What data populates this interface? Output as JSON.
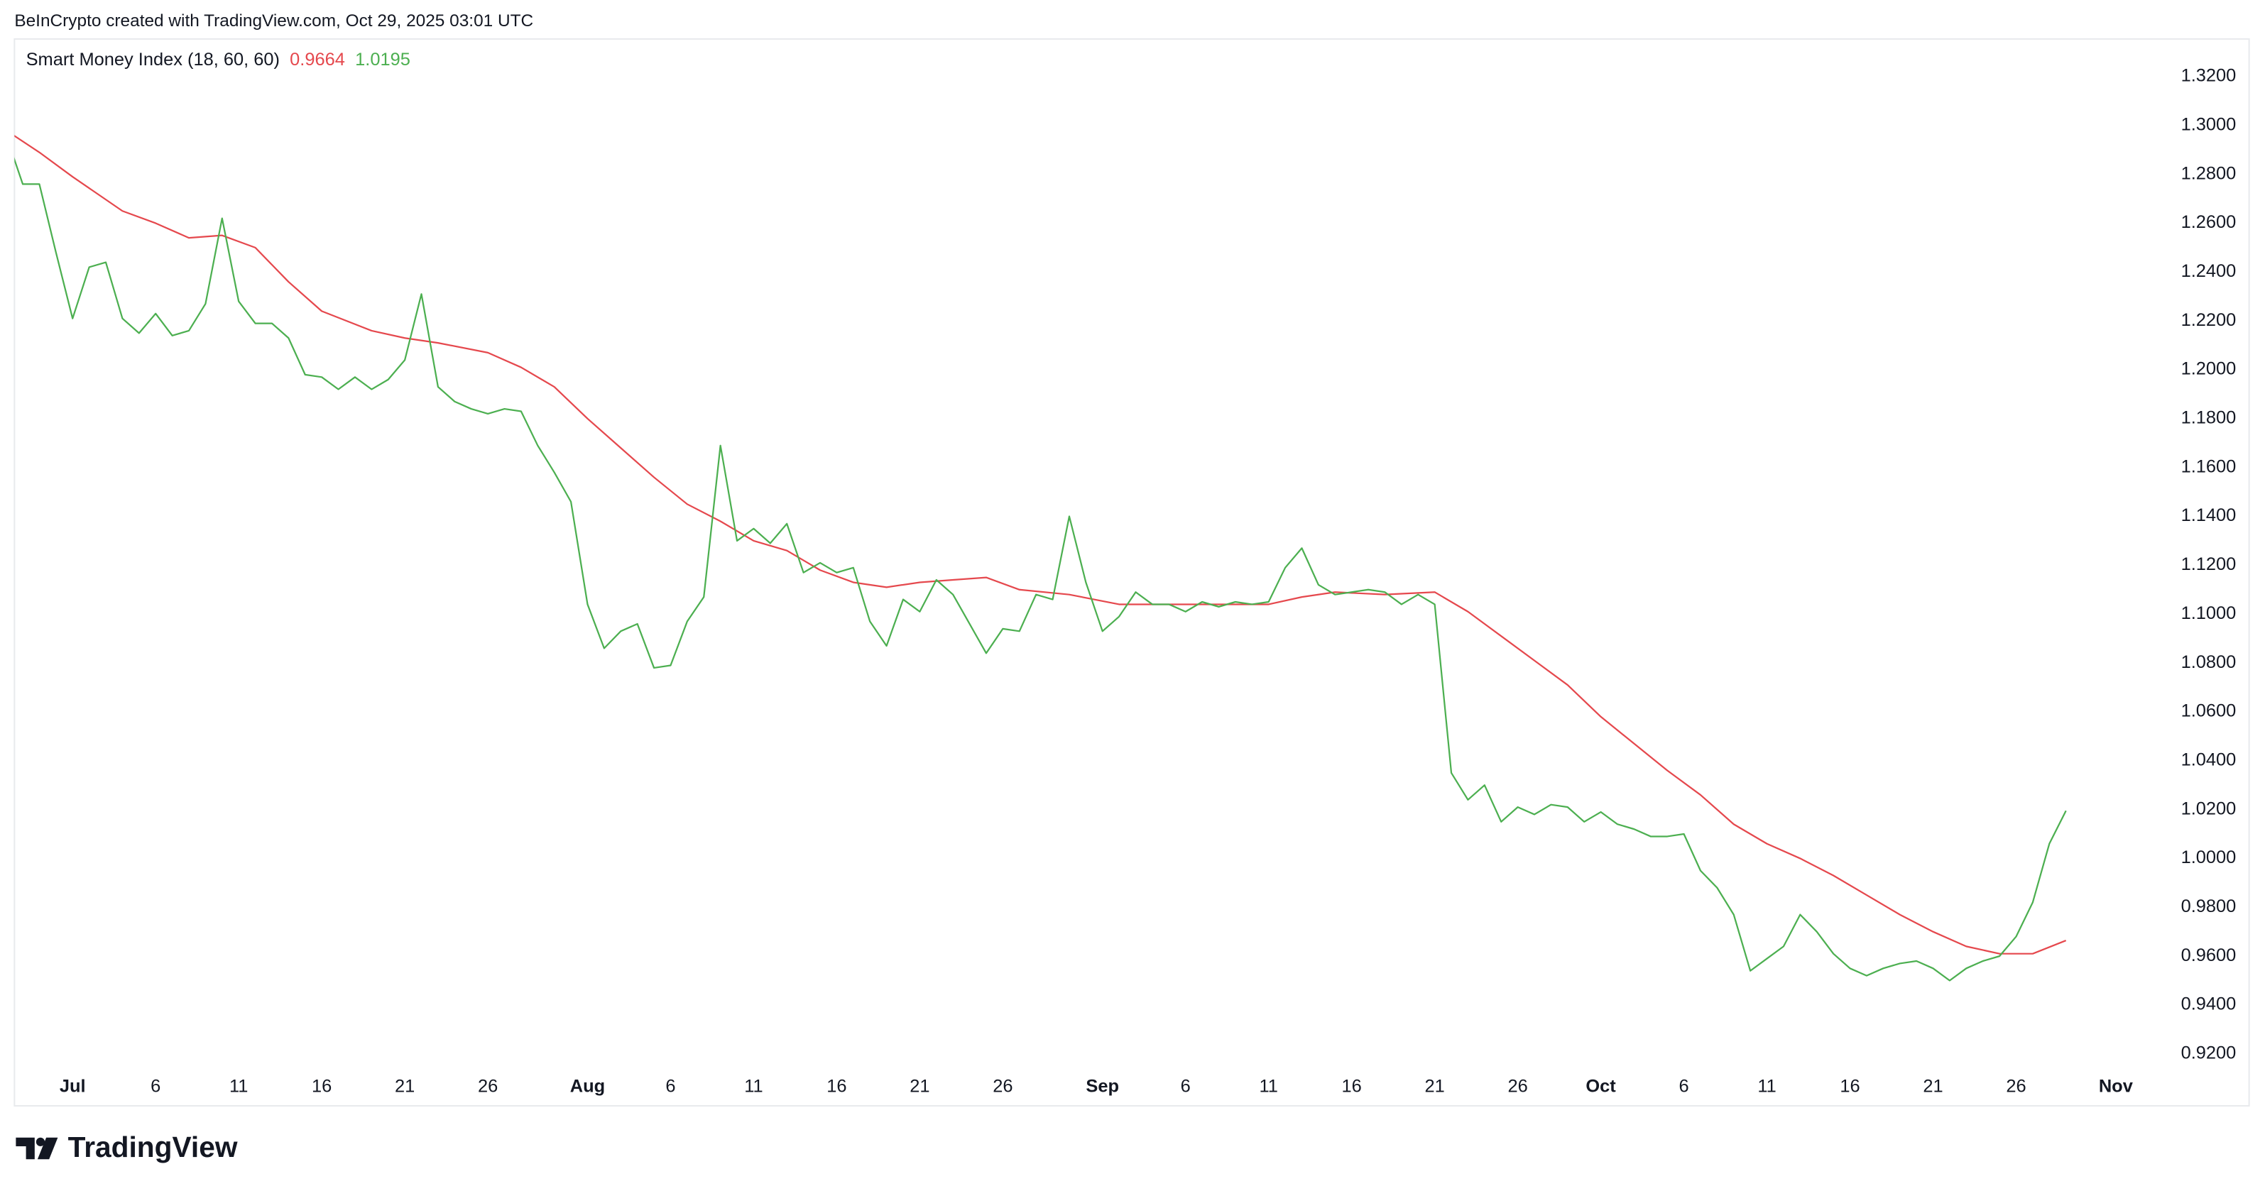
{
  "chart_data": {
    "type": "line",
    "attribution": "BeInCrypto created with TradingView.com, Oct 29, 2025 03:01 UTC",
    "title": "Smart Money Index (18, 60, 60)",
    "logo_text": "TradingView",
    "xlim": [
      -3.5,
      125.2
    ],
    "xticks": [
      {
        "value": 0,
        "label": "Jul"
      },
      {
        "value": 5,
        "label": "6"
      },
      {
        "value": 10,
        "label": "11"
      },
      {
        "value": 15,
        "label": "16"
      },
      {
        "value": 20,
        "label": "21"
      },
      {
        "value": 25,
        "label": "26"
      },
      {
        "value": 31,
        "label": "Aug"
      },
      {
        "value": 36,
        "label": "6"
      },
      {
        "value": 41,
        "label": "11"
      },
      {
        "value": 46,
        "label": "16"
      },
      {
        "value": 51,
        "label": "21"
      },
      {
        "value": 56,
        "label": "26"
      },
      {
        "value": 62,
        "label": "Sep"
      },
      {
        "value": 67,
        "label": "6"
      },
      {
        "value": 72,
        "label": "11"
      },
      {
        "value": 77,
        "label": "16"
      },
      {
        "value": 82,
        "label": "21"
      },
      {
        "value": 87,
        "label": "26"
      },
      {
        "value": 92,
        "label": "Oct"
      },
      {
        "value": 97,
        "label": "6"
      },
      {
        "value": 102,
        "label": "11"
      },
      {
        "value": 107,
        "label": "16"
      },
      {
        "value": 112,
        "label": "21"
      },
      {
        "value": 117,
        "label": "26"
      },
      {
        "value": 123,
        "label": "Nov"
      }
    ],
    "ylim": [
      0.9141,
      1.3354
    ],
    "yticks": [
      {
        "value": 0.92,
        "label": "0.9200"
      },
      {
        "value": 0.94,
        "label": "0.9400"
      },
      {
        "value": 0.96,
        "label": "0.9600"
      },
      {
        "value": 0.98,
        "label": "0.9800"
      },
      {
        "value": 1.0,
        "label": "1.0000"
      },
      {
        "value": 1.02,
        "label": "1.0200"
      },
      {
        "value": 1.04,
        "label": "1.0400"
      },
      {
        "value": 1.06,
        "label": "1.0600"
      },
      {
        "value": 1.08,
        "label": "1.0800"
      },
      {
        "value": 1.1,
        "label": "1.1000"
      },
      {
        "value": 1.12,
        "label": "1.1200"
      },
      {
        "value": 1.14,
        "label": "1.1400"
      },
      {
        "value": 1.16,
        "label": "1.1600"
      },
      {
        "value": 1.18,
        "label": "1.1800"
      },
      {
        "value": 1.2,
        "label": "1.2000"
      },
      {
        "value": 1.22,
        "label": "1.2200"
      },
      {
        "value": 1.24,
        "label": "1.2400"
      },
      {
        "value": 1.26,
        "label": "1.2600"
      },
      {
        "value": 1.28,
        "label": "1.2800"
      },
      {
        "value": 1.3,
        "label": "1.3000"
      },
      {
        "value": 1.32,
        "label": "1.3200"
      }
    ],
    "grid": false,
    "series": [
      {
        "color": "#e5484d",
        "x": [
          -4,
          -2,
          0,
          3,
          5,
          7,
          9,
          11,
          13,
          15,
          18,
          20,
          22,
          25,
          27,
          29,
          31,
          33,
          35,
          37,
          39,
          41,
          43,
          45,
          47,
          49,
          51,
          53,
          55,
          57,
          60,
          63,
          66,
          69,
          72,
          74,
          76,
          79,
          82,
          84,
          86,
          88,
          90,
          92,
          94,
          96,
          98,
          100,
          102,
          104,
          106,
          108,
          110,
          112,
          114,
          116,
          118,
          120
        ],
        "values": [
          1.298,
          1.289,
          1.279,
          1.265,
          1.26,
          1.254,
          1.255,
          1.25,
          1.236,
          1.224,
          1.216,
          1.213,
          1.211,
          1.207,
          1.201,
          1.193,
          1.18,
          1.168,
          1.156,
          1.145,
          1.138,
          1.13,
          1.126,
          1.118,
          1.113,
          1.111,
          1.113,
          1.114,
          1.115,
          1.11,
          1.108,
          1.104,
          1.104,
          1.104,
          1.104,
          1.107,
          1.109,
          1.108,
          1.109,
          1.101,
          1.091,
          1.081,
          1.071,
          1.058,
          1.047,
          1.036,
          1.026,
          1.014,
          1.006,
          1.0,
          0.993,
          0.985,
          0.977,
          0.97,
          0.964,
          0.961,
          0.961,
          0.9664
        ]
      },
      {
        "color": "#4caf50",
        "x": [
          -4,
          -3,
          -2,
          -1,
          0,
          1,
          2,
          3,
          4,
          5,
          6,
          7,
          8,
          9,
          10,
          11,
          12,
          13,
          14,
          15,
          16,
          17,
          18,
          19,
          20,
          21,
          22,
          23,
          24,
          25,
          26,
          27,
          28,
          29,
          30,
          31,
          32,
          33,
          34,
          35,
          36,
          37,
          38,
          39,
          40,
          41,
          42,
          43,
          44,
          45,
          46,
          47,
          48,
          49,
          50,
          51,
          52,
          53,
          54,
          55,
          56,
          57,
          58,
          59,
          60,
          61,
          62,
          63,
          64,
          65,
          66,
          67,
          68,
          69,
          70,
          71,
          72,
          73,
          74,
          75,
          76,
          77,
          78,
          79,
          80,
          81,
          82,
          83,
          84,
          85,
          86,
          87,
          88,
          89,
          90,
          91,
          92,
          93,
          94,
          95,
          96,
          97,
          98,
          99,
          100,
          101,
          102,
          103,
          104,
          105,
          106,
          107,
          108,
          109,
          110,
          111,
          112,
          113,
          114,
          115,
          116,
          117,
          118,
          119,
          120
        ],
        "values": [
          1.296,
          1.276,
          1.276,
          1.248,
          1.221,
          1.242,
          1.244,
          1.221,
          1.215,
          1.223,
          1.214,
          1.216,
          1.227,
          1.262,
          1.228,
          1.219,
          1.219,
          1.213,
          1.198,
          1.197,
          1.192,
          1.197,
          1.192,
          1.196,
          1.204,
          1.231,
          1.193,
          1.187,
          1.184,
          1.182,
          1.184,
          1.183,
          1.169,
          1.158,
          1.146,
          1.104,
          1.086,
          1.093,
          1.096,
          1.078,
          1.079,
          1.097,
          1.107,
          1.169,
          1.13,
          1.135,
          1.129,
          1.137,
          1.117,
          1.121,
          1.117,
          1.119,
          1.097,
          1.087,
          1.106,
          1.101,
          1.114,
          1.108,
          1.096,
          1.084,
          1.094,
          1.093,
          1.108,
          1.106,
          1.14,
          1.113,
          1.093,
          1.099,
          1.109,
          1.104,
          1.104,
          1.101,
          1.105,
          1.103,
          1.105,
          1.104,
          1.105,
          1.119,
          1.127,
          1.112,
          1.108,
          1.109,
          1.11,
          1.109,
          1.104,
          1.108,
          1.104,
          1.035,
          1.024,
          1.03,
          1.015,
          1.021,
          1.018,
          1.022,
          1.021,
          1.015,
          1.019,
          1.014,
          1.012,
          1.009,
          1.009,
          1.01,
          0.995,
          0.988,
          0.977,
          0.954,
          0.959,
          0.964,
          0.977,
          0.97,
          0.961,
          0.955,
          0.952,
          0.955,
          0.957,
          0.958,
          0.955,
          0.95,
          0.955,
          0.958,
          0.96,
          0.968,
          0.982,
          1.006,
          1.0195
        ]
      }
    ]
  }
}
